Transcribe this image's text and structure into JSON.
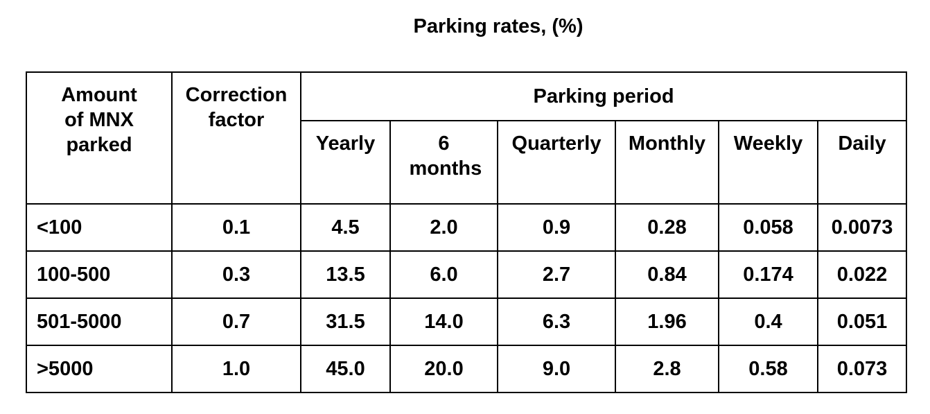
{
  "title": "Parking rates, (%)",
  "headers": {
    "amount": "Amount of MNX parked",
    "correction": "Correction factor",
    "period": "Parking period",
    "periods": [
      "Yearly",
      "6 months",
      "Quarterly",
      "Monthly",
      "Weekly",
      "Daily"
    ]
  },
  "rows": [
    {
      "amount": "<100",
      "factor": "0.1",
      "rates": [
        "4.5",
        "2.0",
        "0.9",
        "0.28",
        "0.058",
        "0.0073"
      ]
    },
    {
      "amount": "100-500",
      "factor": "0.3",
      "rates": [
        "13.5",
        "6.0",
        "2.7",
        "0.84",
        "0.174",
        "0.022"
      ]
    },
    {
      "amount": "501-5000",
      "factor": "0.7",
      "rates": [
        "31.5",
        "14.0",
        "6.3",
        "1.96",
        "0.4",
        "0.051"
      ]
    },
    {
      "amount": ">5000",
      "factor": "1.0",
      "rates": [
        "45.0",
        "20.0",
        "9.0",
        "2.8",
        "0.58",
        "0.073"
      ]
    }
  ]
}
